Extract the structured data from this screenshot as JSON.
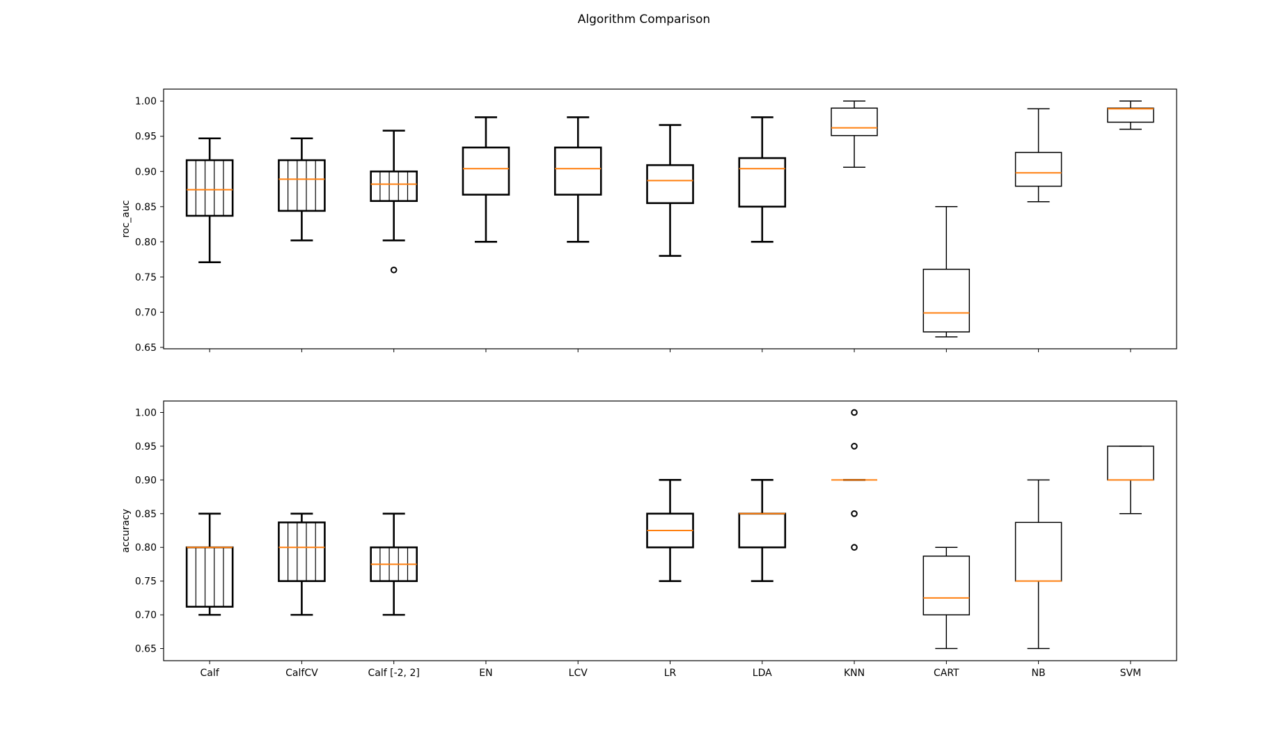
{
  "figure": {
    "title": "Algorithm Comparison"
  },
  "colors": {
    "median": "#ff7f0e",
    "box": "#000000",
    "background": "#ffffff"
  },
  "chart_data": [
    {
      "type": "box",
      "ylabel": "roc_auc",
      "ylim": [
        0.648,
        1.017
      ],
      "yticks": [
        "1.00",
        "0.95",
        "0.90",
        "0.85",
        "0.80",
        "0.75",
        "0.70",
        "0.65"
      ],
      "show_x_tick_labels": false,
      "categories": [
        "Calf",
        "CalfCV",
        "Calf [-2, 2]",
        "EN",
        "LCV",
        "LR",
        "LDA",
        "KNN",
        "CART",
        "NB",
        "SVM"
      ],
      "boxes": [
        {
          "whislo": 0.771,
          "q1": 0.837,
          "med": 0.874,
          "q3": 0.916,
          "whishi": 0.947,
          "fliers": [],
          "hatch": true,
          "bold": true
        },
        {
          "whislo": 0.802,
          "q1": 0.844,
          "med": 0.889,
          "q3": 0.916,
          "whishi": 0.947,
          "fliers": [],
          "hatch": true,
          "bold": true
        },
        {
          "whislo": 0.802,
          "q1": 0.858,
          "med": 0.882,
          "q3": 0.9,
          "whishi": 0.958,
          "fliers": [
            0.76
          ],
          "hatch": true,
          "bold": true
        },
        {
          "whislo": 0.8,
          "q1": 0.867,
          "med": 0.904,
          "q3": 0.934,
          "whishi": 0.977,
          "fliers": [],
          "hatch": false,
          "bold": true
        },
        {
          "whislo": 0.8,
          "q1": 0.867,
          "med": 0.904,
          "q3": 0.934,
          "whishi": 0.977,
          "fliers": [],
          "hatch": false,
          "bold": true
        },
        {
          "whislo": 0.78,
          "q1": 0.855,
          "med": 0.887,
          "q3": 0.909,
          "whishi": 0.966,
          "fliers": [],
          "hatch": false,
          "bold": true
        },
        {
          "whislo": 0.8,
          "q1": 0.85,
          "med": 0.904,
          "q3": 0.919,
          "whishi": 0.977,
          "fliers": [],
          "hatch": false,
          "bold": true
        },
        {
          "whislo": 0.906,
          "q1": 0.951,
          "med": 0.962,
          "q3": 0.99,
          "whishi": 1.0,
          "fliers": [],
          "hatch": false,
          "bold": false
        },
        {
          "whislo": 0.665,
          "q1": 0.672,
          "med": 0.699,
          "q3": 0.761,
          "whishi": 0.85,
          "fliers": [],
          "hatch": false,
          "bold": false
        },
        {
          "whislo": 0.857,
          "q1": 0.879,
          "med": 0.898,
          "q3": 0.927,
          "whishi": 0.989,
          "fliers": [],
          "hatch": false,
          "bold": false
        },
        {
          "whislo": 0.96,
          "q1": 0.97,
          "med": 0.989,
          "q3": 0.99,
          "whishi": 1.0,
          "fliers": [],
          "hatch": false,
          "bold": false
        }
      ]
    },
    {
      "type": "box",
      "ylabel": "accuracy",
      "ylim": [
        0.632,
        1.017
      ],
      "yticks": [
        "1.00",
        "0.95",
        "0.90",
        "0.85",
        "0.80",
        "0.75",
        "0.70",
        "0.65"
      ],
      "show_x_tick_labels": true,
      "categories": [
        "Calf",
        "CalfCV",
        "Calf [-2, 2]",
        "EN",
        "LCV",
        "LR",
        "LDA",
        "KNN",
        "CART",
        "NB",
        "SVM"
      ],
      "boxes": [
        {
          "whislo": 0.7,
          "q1": 0.712,
          "med": 0.8,
          "q3": 0.8,
          "whishi": 0.85,
          "fliers": [],
          "hatch": true,
          "bold": true
        },
        {
          "whislo": 0.7,
          "q1": 0.75,
          "med": 0.8,
          "q3": 0.837,
          "whishi": 0.85,
          "fliers": [],
          "hatch": true,
          "bold": true
        },
        {
          "whislo": 0.7,
          "q1": 0.75,
          "med": 0.775,
          "q3": 0.8,
          "whishi": 0.85,
          "fliers": [],
          "hatch": true,
          "bold": true
        },
        null,
        null,
        {
          "whislo": 0.75,
          "q1": 0.8,
          "med": 0.825,
          "q3": 0.85,
          "whishi": 0.9,
          "fliers": [],
          "hatch": false,
          "bold": true
        },
        {
          "whislo": 0.75,
          "q1": 0.8,
          "med": 0.85,
          "q3": 0.85,
          "whishi": 0.9,
          "fliers": [],
          "hatch": false,
          "bold": true
        },
        {
          "whislo": 0.9,
          "q1": 0.9,
          "med": 0.9,
          "q3": 0.9,
          "whishi": 0.9,
          "fliers": [
            1.0,
            0.95,
            0.85,
            0.8
          ],
          "hatch": false,
          "bold": true
        },
        {
          "whislo": 0.65,
          "q1": 0.7,
          "med": 0.725,
          "q3": 0.787,
          "whishi": 0.8,
          "fliers": [],
          "hatch": false,
          "bold": false
        },
        {
          "whislo": 0.65,
          "q1": 0.75,
          "med": 0.75,
          "q3": 0.837,
          "whishi": 0.9,
          "fliers": [],
          "hatch": false,
          "bold": false
        },
        {
          "whislo": 0.85,
          "q1": 0.9,
          "med": 0.9,
          "q3": 0.95,
          "whishi": 0.95,
          "fliers": [],
          "hatch": false,
          "bold": false
        }
      ]
    }
  ]
}
